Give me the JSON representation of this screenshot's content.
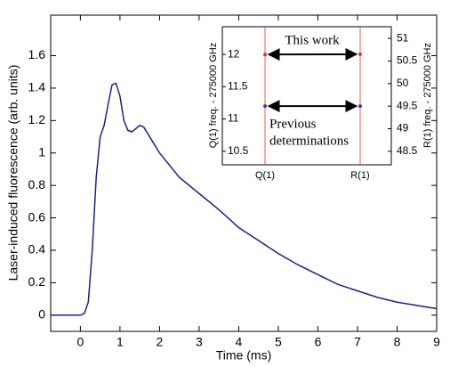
{
  "chart_data": [
    {
      "type": "line",
      "xlabel": "Time (ms)",
      "ylabel": "Laser-induced fluorescence (arb. units)",
      "xlim": [
        -0.75,
        9
      ],
      "ylim": [
        -0.1,
        1.85
      ],
      "xticks": [
        0,
        1,
        2,
        3,
        4,
        5,
        6,
        7,
        8,
        9
      ],
      "yticks": [
        0,
        0.2,
        0.4,
        0.6,
        0.8,
        1,
        1.2,
        1.4,
        1.6
      ],
      "x": [
        -0.75,
        0,
        0.1,
        0.2,
        0.3,
        0.4,
        0.5,
        0.6,
        0.7,
        0.8,
        0.9,
        1.0,
        1.1,
        1.2,
        1.3,
        1.4,
        1.5,
        1.6,
        1.8,
        2.0,
        2.2,
        2.5,
        3.0,
        3.5,
        4.0,
        4.5,
        5.0,
        5.5,
        6.0,
        6.5,
        7.0,
        7.5,
        8.0,
        8.5,
        9.0
      ],
      "series": [
        {
          "color": "#1a237e",
          "values": [
            0,
            0,
            0.01,
            0.08,
            0.4,
            0.85,
            1.1,
            1.17,
            1.3,
            1.42,
            1.43,
            1.35,
            1.2,
            1.14,
            1.13,
            1.15,
            1.17,
            1.16,
            1.08,
            1.0,
            0.94,
            0.85,
            0.75,
            0.65,
            0.54,
            0.46,
            0.38,
            0.31,
            0.25,
            0.19,
            0.15,
            0.11,
            0.08,
            0.06,
            0.04
          ]
        }
      ]
    },
    {
      "type": "scatter",
      "categories": [
        "Q(1)",
        "R(1)"
      ],
      "ylabel": "Q(1) freq. - 275000 GHz",
      "y2label": "R(1) freq. - 275000 GHz",
      "ylim": [
        10.29,
        12.43
      ],
      "yticks": [
        10.5,
        11.0,
        11.5,
        12.0
      ],
      "y2lim": [
        48.2,
        51.26
      ],
      "y2ticks": [
        48.5,
        49,
        49.5,
        50,
        50.5,
        51
      ],
      "annotations": [
        "This work",
        "Previous",
        "determinations"
      ],
      "series": [
        {
          "color": "#e8302a",
          "values": [
            12.0,
            null
          ]
        },
        {
          "color": "#e8302a",
          "values": [
            null,
            50.65
          ],
          "axis": "y2"
        },
        {
          "color": "#3040c0",
          "values": [
            11.2,
            null
          ]
        },
        {
          "color": "#3040c0",
          "values": [
            null,
            49.5
          ],
          "axis": "y2"
        }
      ]
    }
  ]
}
